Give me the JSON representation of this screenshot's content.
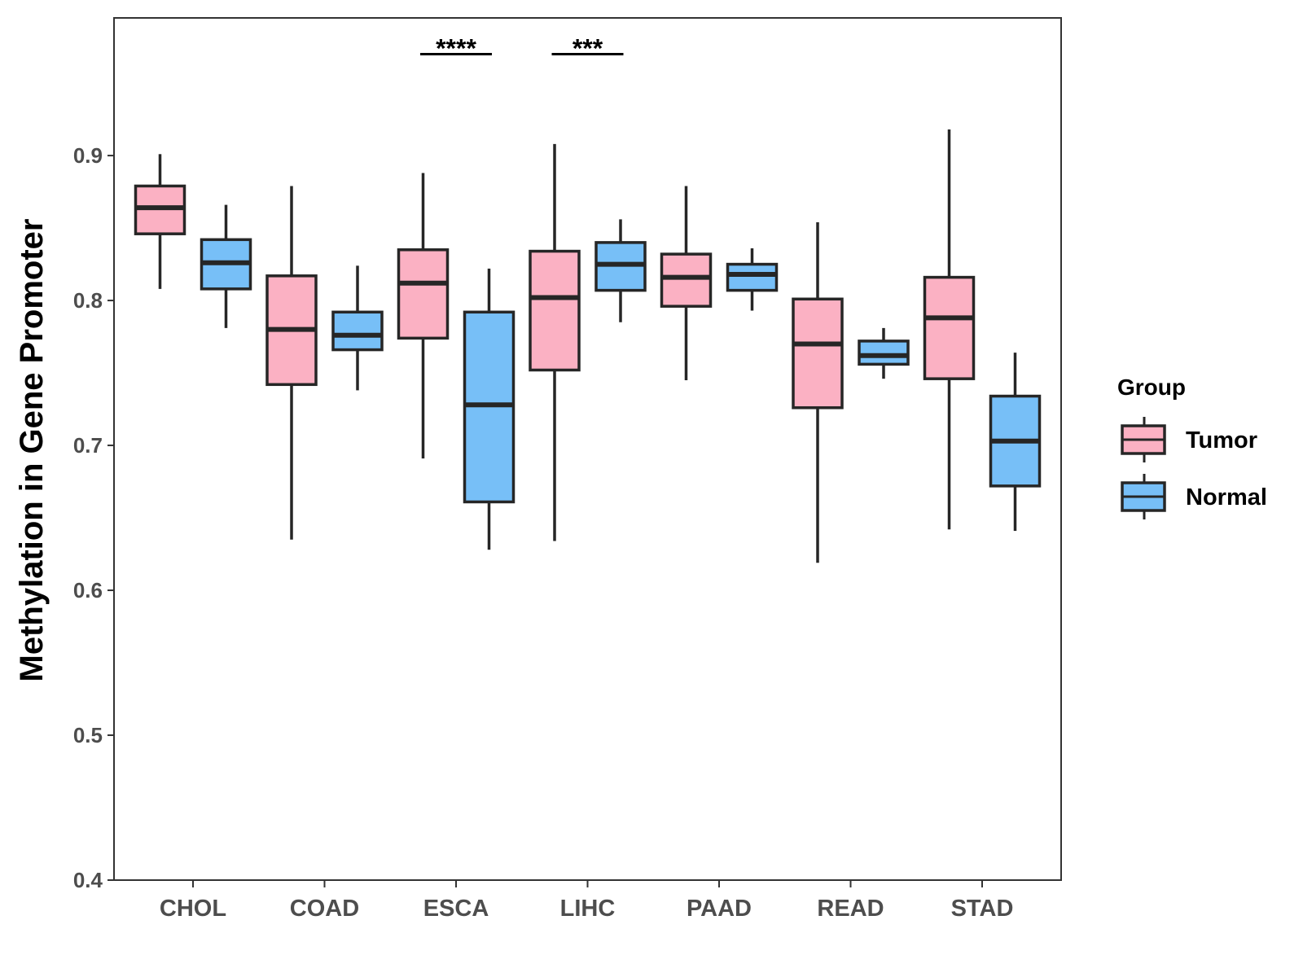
{
  "chart_data": {
    "type": "boxplot",
    "title": "",
    "xlabel": "",
    "ylabel": "Methylation in Gene Promoter",
    "ylim": [
      0.4,
      0.995
    ],
    "yticks": [
      "0.4",
      "0.5",
      "0.6",
      "0.7",
      "0.8",
      "0.9"
    ],
    "categories": [
      "CHOL",
      "COAD",
      "ESCA",
      "LIHC",
      "PAAD",
      "READ",
      "STAD"
    ],
    "legend": {
      "title": "Group",
      "placement": "right",
      "entries": [
        {
          "name": "Tumor",
          "color": "#FBB1C3"
        },
        {
          "name": "Normal",
          "color": "#77BFF7"
        }
      ]
    },
    "series": [
      {
        "name": "Tumor",
        "color": "#FBB1C3",
        "boxes": [
          {
            "category": "CHOL",
            "min": 0.808,
            "q1": 0.846,
            "median": 0.864,
            "q3": 0.879,
            "max": 0.901
          },
          {
            "category": "COAD",
            "min": 0.635,
            "q1": 0.742,
            "median": 0.78,
            "q3": 0.817,
            "max": 0.879
          },
          {
            "category": "ESCA",
            "min": 0.691,
            "q1": 0.774,
            "median": 0.812,
            "q3": 0.835,
            "max": 0.888
          },
          {
            "category": "LIHC",
            "min": 0.634,
            "q1": 0.752,
            "median": 0.802,
            "q3": 0.834,
            "max": 0.908
          },
          {
            "category": "PAAD",
            "min": 0.745,
            "q1": 0.796,
            "median": 0.816,
            "q3": 0.832,
            "max": 0.879
          },
          {
            "category": "READ",
            "min": 0.619,
            "q1": 0.726,
            "median": 0.77,
            "q3": 0.801,
            "max": 0.854
          },
          {
            "category": "STAD",
            "min": 0.642,
            "q1": 0.746,
            "median": 0.788,
            "q3": 0.816,
            "max": 0.918
          }
        ]
      },
      {
        "name": "Normal",
        "color": "#77BFF7",
        "boxes": [
          {
            "category": "CHOL",
            "min": 0.781,
            "q1": 0.808,
            "median": 0.826,
            "q3": 0.842,
            "max": 0.866
          },
          {
            "category": "COAD",
            "min": 0.738,
            "q1": 0.766,
            "median": 0.776,
            "q3": 0.792,
            "max": 0.824
          },
          {
            "category": "ESCA",
            "min": 0.628,
            "q1": 0.661,
            "median": 0.728,
            "q3": 0.792,
            "max": 0.822
          },
          {
            "category": "LIHC",
            "min": 0.785,
            "q1": 0.807,
            "median": 0.825,
            "q3": 0.84,
            "max": 0.856
          },
          {
            "category": "PAAD",
            "min": 0.793,
            "q1": 0.807,
            "median": 0.818,
            "q3": 0.825,
            "max": 0.836
          },
          {
            "category": "READ",
            "min": 0.746,
            "q1": 0.756,
            "median": 0.762,
            "q3": 0.772,
            "max": 0.781
          },
          {
            "category": "STAD",
            "min": 0.641,
            "q1": 0.672,
            "median": 0.703,
            "q3": 0.734,
            "max": 0.764
          }
        ]
      }
    ],
    "significance": [
      {
        "category": "ESCA",
        "label": "****",
        "y": 0.97
      },
      {
        "category": "LIHC",
        "label": "***",
        "y": 0.97
      }
    ]
  }
}
